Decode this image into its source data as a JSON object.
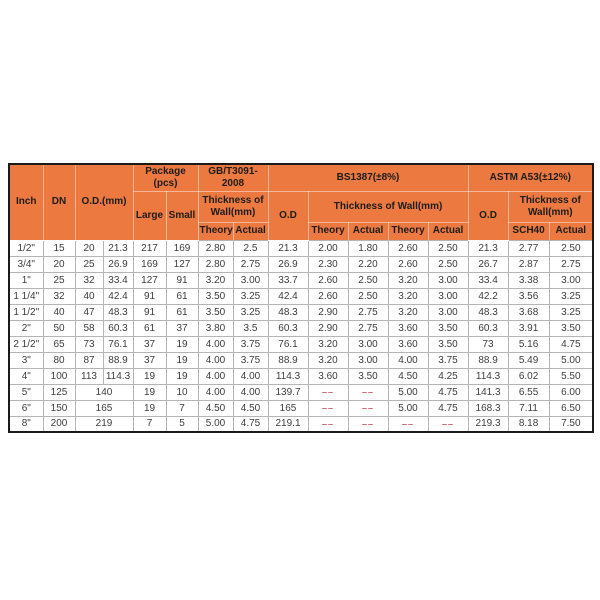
{
  "theme": {
    "header_bg": "#ec7a40",
    "header_text": "#1c1c1c",
    "header_line": "rgba(255,255,255,0.45)",
    "grid_line": "#b5b5b5",
    "outer_border": "#1a1a1a",
    "body_text": "#3d3d3d",
    "dash_color": "#c5606a",
    "page_bg": "#ffffff"
  },
  "table": {
    "header": {
      "inch": "Inch",
      "dn": "DN",
      "od_mm": "O.D.(mm)",
      "package": "Package\n(pcs)",
      "large": "Large",
      "small": "Small",
      "gb_standard": "GB/T3091-2008",
      "gb_thickness": "Thickness of\nWall(mm)",
      "bs_standard": "BS1387(±8%)",
      "bs_od": "O.D",
      "bs_thickness": "Thickness of Wall(mm)",
      "astm_standard": "ASTM A53(±12%)",
      "astm_od": "O.D",
      "astm_thickness": "Thickness of\nWall(mm)",
      "sub": [
        "Theory",
        "Actual",
        "Theory",
        "Actual",
        "Theory",
        "Actual",
        "SCH40",
        "Actual"
      ]
    },
    "rows": [
      [
        "1/2\"",
        "15",
        "20",
        "21.3",
        "217",
        "169",
        "2.80",
        "2.5",
        "21.3",
        "2.00",
        "1.80",
        "2.60",
        "2.50",
        "21.3",
        "2.77",
        "2.50"
      ],
      [
        "3/4\"",
        "20",
        "25",
        "26.9",
        "169",
        "127",
        "2.80",
        "2.75",
        "26.9",
        "2.30",
        "2.20",
        "2.60",
        "2.50",
        "26.7",
        "2.87",
        "2.75"
      ],
      [
        "1\"",
        "25",
        "32",
        "33.4",
        "127",
        "91",
        "3.20",
        "3.00",
        "33.7",
        "2.60",
        "2.50",
        "3.20",
        "3.00",
        "33.4",
        "3.38",
        "3.00"
      ],
      [
        "1 1/4\"",
        "32",
        "40",
        "42.4",
        "91",
        "61",
        "3.50",
        "3.25",
        "42.4",
        "2.60",
        "2.50",
        "3.20",
        "3.00",
        "42.2",
        "3.56",
        "3.25"
      ],
      [
        "1 1/2\"",
        "40",
        "47",
        "48.3",
        "91",
        "61",
        "3.50",
        "3.25",
        "48.3",
        "2.90",
        "2.75",
        "3.20",
        "3.00",
        "48.3",
        "3.68",
        "3.25"
      ],
      [
        "2\"",
        "50",
        "58",
        "60.3",
        "61",
        "37",
        "3.80",
        "3.5",
        "60.3",
        "2.90",
        "2.75",
        "3.60",
        "3.50",
        "60.3",
        "3.91",
        "3.50"
      ],
      [
        "2 1/2\"",
        "65",
        "73",
        "76.1",
        "37",
        "19",
        "4.00",
        "3.75",
        "76.1",
        "3.20",
        "3.00",
        "3.60",
        "3.50",
        "73",
        "5.16",
        "4.75"
      ],
      [
        "3\"",
        "80",
        "87",
        "88.9",
        "37",
        "19",
        "4.00",
        "3.75",
        "88.9",
        "3.20",
        "3.00",
        "4.00",
        "3.75",
        "88.9",
        "5.49",
        "5.00"
      ],
      [
        "4\"",
        "100",
        "113",
        "114.3",
        "19",
        "19",
        "4.00",
        "4.00",
        "114.3",
        "3.60",
        "3.50",
        "4.50",
        "4.25",
        "114.3",
        "6.02",
        "5.50"
      ],
      [
        "5\"",
        "125",
        {
          "t": "140",
          "span": 2
        },
        "19",
        "10",
        "4.00",
        "4.00",
        "139.7",
        "––",
        "––",
        "5.00",
        "4.75",
        "141.3",
        "6.55",
        "6.00"
      ],
      [
        "6\"",
        "150",
        {
          "t": "165",
          "span": 2
        },
        "19",
        "7",
        "4.50",
        "4.50",
        "165",
        "––",
        "––",
        "5.00",
        "4.75",
        "168.3",
        "7.11",
        "6.50"
      ],
      [
        "8\"",
        "200",
        {
          "t": "219",
          "span": 2
        },
        "7",
        "5",
        "5.00",
        "4.75",
        "219.1",
        "––",
        "––",
        "––",
        "––",
        "219.3",
        "8.18",
        "7.50"
      ]
    ]
  }
}
